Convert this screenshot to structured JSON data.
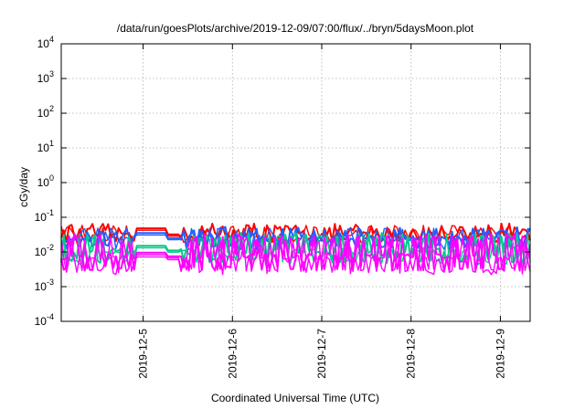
{
  "chart_data": {
    "type": "line",
    "title": "/data/run/goesPlots/archive/2019-12-09/07:00/flux/../bryn/5daysMoon.plot",
    "xlabel": "Coordinated Universal Time (UTC)",
    "ylabel": "cGy/day",
    "yscale": "log",
    "ylim": [
      0.0001,
      10000
    ],
    "xlim": [
      "2019-12-04T02:00",
      "2019-12-09T08:00"
    ],
    "grid": true,
    "x_ticks": [
      {
        "label": "2019-12-5",
        "value": "2019-12-05T00:00"
      },
      {
        "label": "2019-12-6",
        "value": "2019-12-06T00:00"
      },
      {
        "label": "2019-12-7",
        "value": "2019-12-07T00:00"
      },
      {
        "label": "2019-12-8",
        "value": "2019-12-08T00:00"
      },
      {
        "label": "2019-12-9",
        "value": "2019-12-09T00:00"
      }
    ],
    "y_ticks": [
      {
        "base": "10",
        "exp": "-4",
        "value": 0.0001
      },
      {
        "base": "10",
        "exp": "-3",
        "value": 0.001
      },
      {
        "base": "10",
        "exp": "-2",
        "value": 0.01
      },
      {
        "base": "10",
        "exp": "-1",
        "value": 0.1
      },
      {
        "base": "10",
        "exp": "0",
        "value": 1
      },
      {
        "base": "10",
        "exp": "1",
        "value": 10
      },
      {
        "base": "10",
        "exp": "2",
        "value": 100
      },
      {
        "base": "10",
        "exp": "3",
        "value": 1000
      },
      {
        "base": "10",
        "exp": "4",
        "value": 10000
      }
    ],
    "series": [
      {
        "color": "#ff0000",
        "base": 0.032,
        "low": 0.024,
        "high": 0.055,
        "lines": 2,
        "flat": 0.048
      },
      {
        "color": "#2060ff",
        "base": 0.025,
        "low": 0.016,
        "high": 0.045,
        "lines": 2,
        "flat": 0.035
      },
      {
        "color": "#00cc88",
        "base": 0.011,
        "low": 0.006,
        "high": 0.03,
        "lines": 2,
        "flat": 0.015
      },
      {
        "color": "#ff00ff",
        "base": 0.0075,
        "low": 0.0035,
        "high": 0.028,
        "lines": 3,
        "flat": 0.0095
      }
    ],
    "flat_segment": [
      "2019-12-04T22:00",
      "2019-12-05T06:00"
    ],
    "gap_segment": [
      "2019-12-05T06:00",
      "2019-12-05T10:00"
    ]
  }
}
